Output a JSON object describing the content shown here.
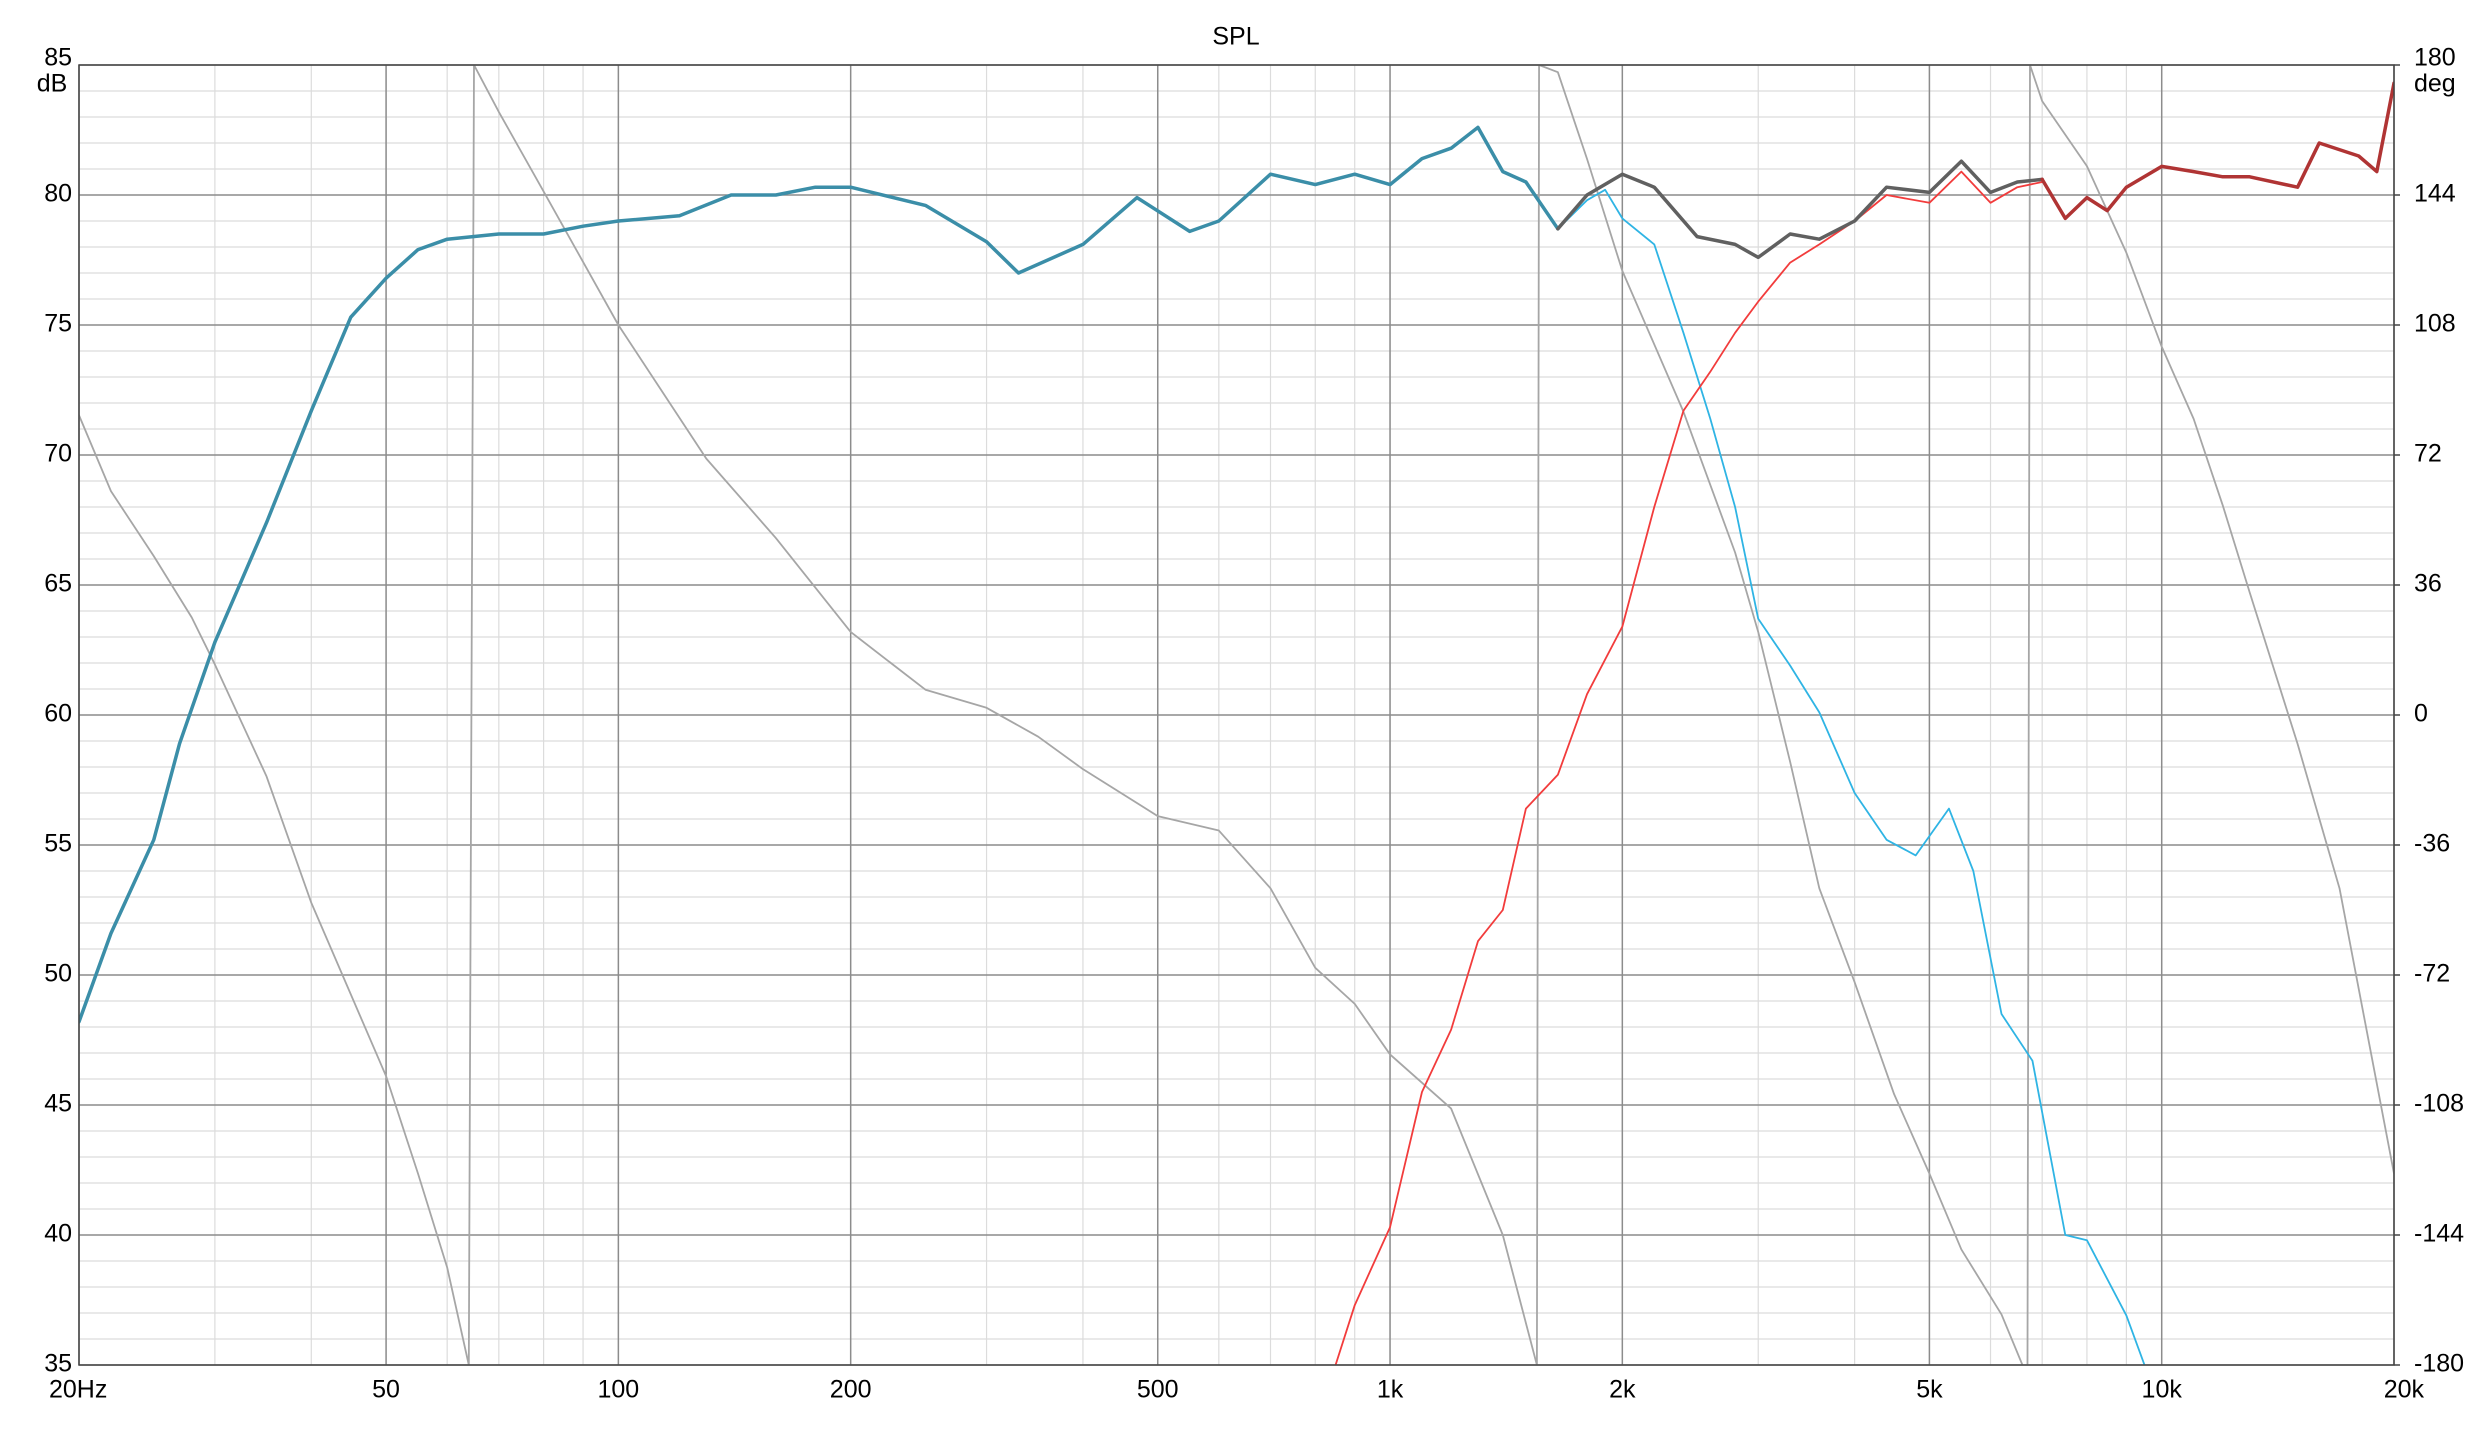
{
  "chart_data": {
    "type": "line",
    "title": "SPL",
    "ylabel": "dB",
    "y2label": "deg",
    "xscale": "log",
    "xlim": [
      20,
      20000
    ],
    "ylim": [
      35,
      85
    ],
    "y2lim": [
      -180,
      180
    ],
    "grid": true,
    "minor_grid": true,
    "xticks": [
      {
        "value": 20,
        "label": "20Hz"
      },
      50,
      100,
      200,
      500,
      {
        "value": 1000,
        "label": "1k"
      },
      {
        "value": 2000,
        "label": "2k"
      },
      {
        "value": 5000,
        "label": "5k"
      },
      {
        "value": 10000,
        "label": "10k"
      },
      {
        "value": 20000,
        "label": "20k"
      }
    ],
    "yticks": [
      35,
      40,
      45,
      50,
      55,
      60,
      65,
      70,
      75,
      80,
      85
    ],
    "y2ticks": [
      -180,
      -144,
      -108,
      -72,
      -36,
      0,
      36,
      72,
      108,
      144,
      180
    ],
    "series": [
      {
        "color": "#a6a6a6",
        "width": 1.8,
        "axis": "y2",
        "x": [
          20,
          22,
          25,
          28,
          30,
          35,
          40,
          50,
          55,
          60,
          64,
          65,
          70,
          80,
          100,
          130,
          160,
          200,
          250,
          300,
          350,
          400,
          500,
          600,
          700,
          800,
          900,
          1000,
          1200,
          1400,
          1550,
          1560,
          1650,
          1800,
          2000,
          2400,
          2800,
          3000,
          3300,
          3600,
          4000,
          4500,
          5000,
          5500,
          6200,
          6600
        ],
        "values": [
          83,
          62,
          44,
          27,
          14,
          -17,
          -52,
          -100,
          -127,
          -153,
          -180,
          180,
          167,
          145,
          108,
          71,
          49,
          23,
          7,
          2,
          -6,
          -15,
          -28,
          -32,
          -48,
          -70,
          -80,
          -94,
          -109,
          -144,
          -180,
          180,
          178,
          154,
          123,
          84,
          45,
          23,
          -13,
          -48,
          -74,
          -105,
          -127,
          -148,
          -166,
          -180
        ]
      },
      {
        "color": "#a6a6a6",
        "width": 1.8,
        "axis": "y2",
        "x": [
          6700,
          6750,
          7000,
          8000,
          9000,
          10000,
          11000,
          12000,
          13000,
          15000,
          17000,
          20000
        ],
        "values": [
          -180,
          180,
          170,
          152,
          128,
          102,
          82,
          58,
          34,
          -8,
          -48,
          -127
        ]
      },
      {
        "color": "#2fb4e4",
        "width": 1.8,
        "x": [
          1400,
          1500,
          1650,
          1800,
          1900,
          2000,
          2200,
          2400,
          2600,
          2800,
          3000,
          3300,
          3600,
          4000,
          4400,
          4800,
          5300,
          5700,
          6200,
          6800,
          7500,
          8000,
          9000,
          9500
        ],
        "values": [
          80.9,
          80.5,
          78.7,
          79.8,
          80.2,
          79.1,
          78.1,
          74.7,
          71.4,
          68.0,
          63.7,
          61.9,
          60.1,
          57.0,
          55.2,
          54.6,
          56.4,
          54.0,
          48.5,
          46.7,
          40.0,
          39.8,
          36.9,
          35
        ]
      },
      {
        "color": "#f23c3c",
        "width": 1.8,
        "x": [
          850,
          900,
          1000,
          1100,
          1200,
          1300,
          1400,
          1500,
          1650,
          1800,
          2000,
          2200,
          2400,
          2600,
          2800,
          3000,
          3300,
          3600,
          4000,
          4400,
          5000,
          5500,
          6000,
          6500,
          7000
        ],
        "values": [
          35,
          37.3,
          40.3,
          45.5,
          47.9,
          51.3,
          52.5,
          56.4,
          57.7,
          60.8,
          63.4,
          68.0,
          71.7,
          73.2,
          74.7,
          75.9,
          77.4,
          78.1,
          79.0,
          80.0,
          79.7,
          80.9,
          79.7,
          80.3,
          80.5
        ]
      },
      {
        "color": "#3b8ea8",
        "width": 3.5,
        "x": [
          20,
          22,
          25,
          27,
          30,
          35,
          40,
          45,
          50,
          55,
          60,
          70,
          80,
          90,
          100,
          120,
          140,
          160,
          180,
          200,
          250,
          300,
          330,
          400,
          470,
          550,
          600,
          700,
          800,
          900,
          1000,
          1100,
          1200,
          1300,
          1400,
          1500,
          1650
        ],
        "values": [
          48.2,
          51.6,
          55.2,
          58.9,
          62.8,
          67.4,
          71.7,
          75.3,
          76.8,
          77.9,
          78.3,
          78.5,
          78.5,
          78.8,
          79.0,
          79.2,
          80.0,
          80.0,
          80.3,
          80.3,
          79.6,
          78.2,
          77.0,
          78.1,
          79.9,
          78.6,
          79.0,
          80.8,
          80.4,
          80.8,
          80.4,
          81.4,
          81.8,
          82.6,
          80.9,
          80.5,
          78.7
        ]
      },
      {
        "color": "#606060",
        "width": 3.5,
        "x": [
          1650,
          1800,
          2000,
          2200,
          2500,
          2800,
          3000,
          3300,
          3600,
          4000,
          4400,
          5000,
          5500,
          6000,
          6500,
          7000
        ],
        "values": [
          78.7,
          80.0,
          80.8,
          80.3,
          78.4,
          78.1,
          77.6,
          78.5,
          78.3,
          79.0,
          80.3,
          80.1,
          81.3,
          80.1,
          80.5,
          80.6
        ]
      },
      {
        "color": "#b03434",
        "width": 3.5,
        "x": [
          7000,
          7500,
          8000,
          8500,
          9000,
          10000,
          11000,
          12000,
          13000,
          15000,
          16000,
          18000,
          19000,
          20000
        ],
        "values": [
          80.6,
          79.1,
          79.9,
          79.4,
          80.3,
          81.1,
          80.9,
          80.7,
          80.7,
          80.3,
          82.0,
          81.5,
          80.9,
          84.3
        ]
      }
    ]
  }
}
